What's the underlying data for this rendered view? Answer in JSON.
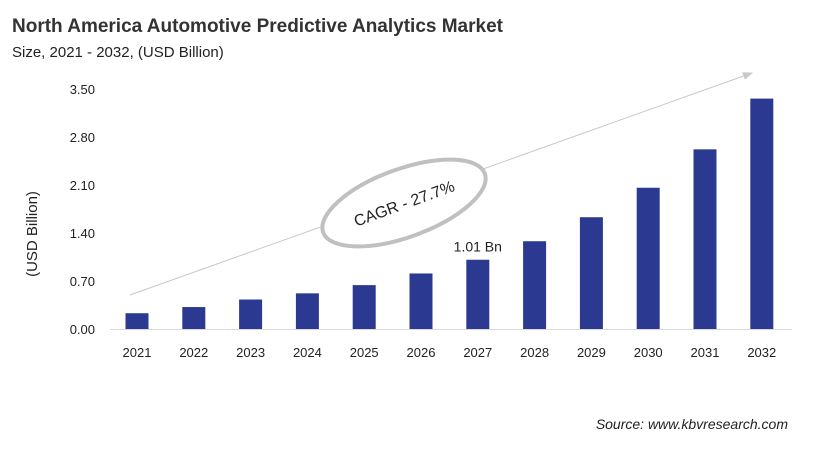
{
  "chart_data": {
    "type": "bar",
    "title": "North America Automotive Predictive Analytics Market",
    "subtitle": "Size, 2021 - 2032, (USD Billion)",
    "ylabel": "(USD Billion)",
    "xlabel": "",
    "categories": [
      "2021",
      "2022",
      "2023",
      "2024",
      "2025",
      "2026",
      "2027",
      "2028",
      "2029",
      "2030",
      "2031",
      "2032"
    ],
    "values": [
      0.23,
      0.32,
      0.43,
      0.52,
      0.64,
      0.81,
      1.01,
      1.28,
      1.63,
      2.06,
      2.62,
      3.36
    ],
    "ylim": [
      0,
      3.5
    ],
    "yticks": [
      "0.00",
      "0.70",
      "1.40",
      "2.10",
      "2.80",
      "3.50"
    ],
    "data_labels": [
      {
        "category": "2027",
        "text": "1.01 Bn"
      }
    ],
    "annotation": "CAGR - 27.7%",
    "bar_color": "#2b3990",
    "grid": false,
    "source": "Source: www.kbvresearch.com"
  }
}
